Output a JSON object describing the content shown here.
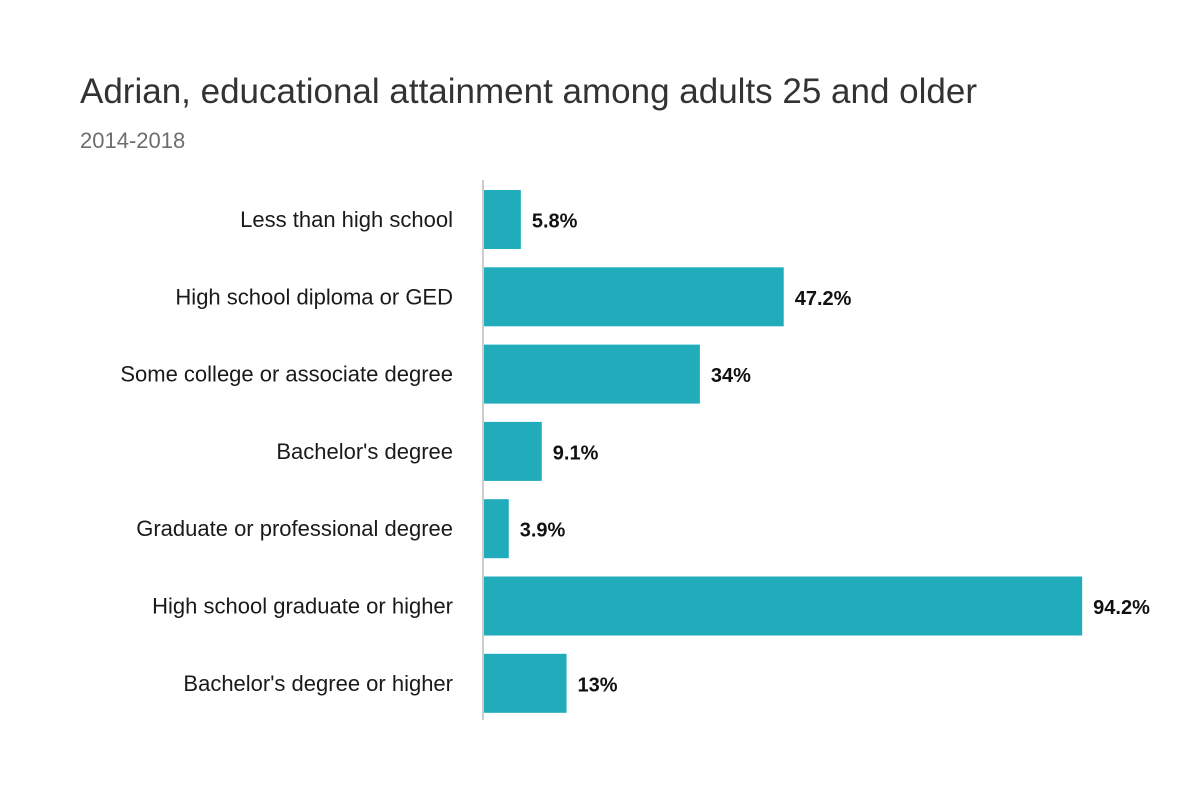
{
  "chart_data": {
    "type": "bar",
    "orientation": "horizontal",
    "title": "Adrian, educational attainment among adults 25 and older",
    "subtitle": "2014-2018",
    "xlabel": "",
    "ylabel": "",
    "xlim": [
      0,
      100
    ],
    "grid": false,
    "categories": [
      "Less than high school",
      "High school diploma or GED",
      "Some college or associate degree",
      "Bachelor's degree",
      "Graduate or professional degree",
      "High school graduate or higher",
      "Bachelor's degree or higher"
    ],
    "values": [
      5.8,
      47.2,
      34,
      9.1,
      3.9,
      94.2,
      13
    ],
    "value_labels": [
      "5.8%",
      "47.2%",
      "34%",
      "9.1%",
      "3.9%",
      "94.2%",
      "13%"
    ],
    "bar_color": "#20acbb",
    "axis_color": "#cccccc"
  }
}
